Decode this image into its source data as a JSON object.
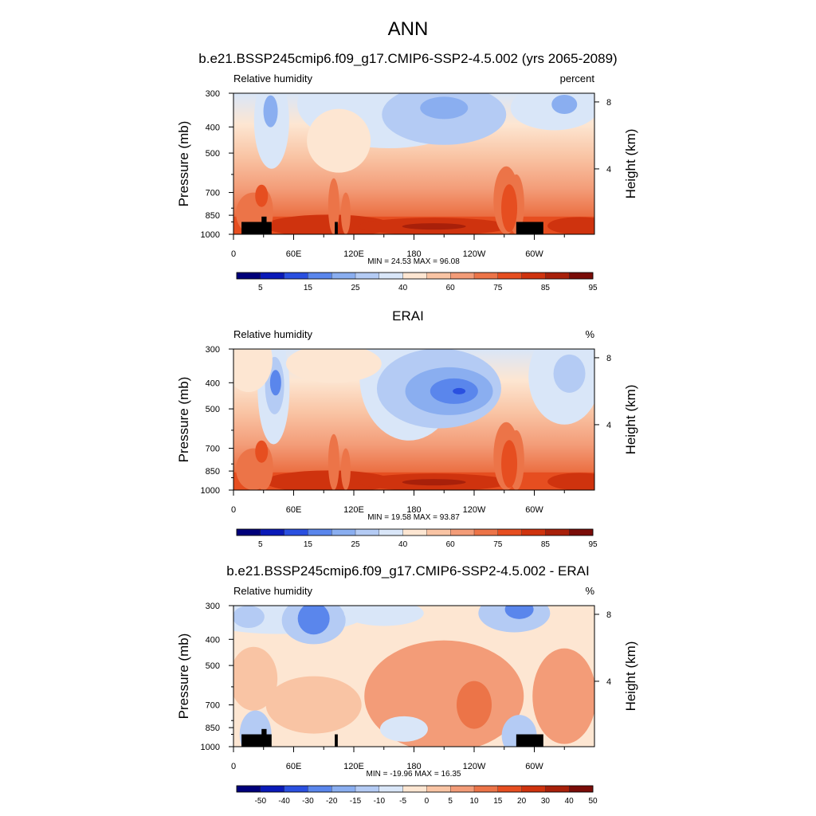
{
  "figure": {
    "title": "ANN",
    "panels": [
      {
        "title": "b.e21.BSSP245cmip6.f09_g17.CMIP6-SSP2-4.5.002 (yrs 2065-2089)",
        "left_label": "Relative humidity",
        "units": "percent",
        "stats": "MIN =  24.53  MAX =  96.08",
        "colorbar_labels": [
          "5",
          "15",
          "25",
          "40",
          "60",
          "75",
          "85",
          "95"
        ]
      },
      {
        "title": "ERAI",
        "left_label": "Relative humidity",
        "units": "%",
        "stats": "MIN =  19.58  MAX =  93.87",
        "colorbar_labels": [
          "5",
          "15",
          "25",
          "40",
          "60",
          "75",
          "85",
          "95"
        ]
      },
      {
        "title": "b.e21.BSSP245cmip6.f09_g17.CMIP6-SSP2-4.5.002 - ERAI",
        "left_label": "Relative humidity",
        "units": "%",
        "stats": "MIN = -19.96  MAX =  16.35",
        "colorbar_labels": [
          "-50",
          "-40",
          "-30",
          "-20",
          "-15",
          "-10",
          "-5",
          "0",
          "5",
          "10",
          "15",
          "20",
          "30",
          "40",
          "50"
        ]
      }
    ]
  },
  "chart_data": [
    {
      "type": "heatmap",
      "title": "b.e21.BSSP245cmip6.f09_g17.CMIP6-SSP2-4.5.002 (yrs 2065-2089)",
      "xlabel": "",
      "ylabel": "Pressure (mb)",
      "y2label": "Height (km)",
      "xticks": [
        "0",
        "60E",
        "120E",
        "180",
        "120W",
        "60W"
      ],
      "yticks": [
        "300",
        "400",
        "500",
        "700",
        "850",
        "1000"
      ],
      "y2ticks": [
        "8",
        "4"
      ],
      "y_scale": "log-pressure",
      "units": "percent",
      "min": 24.53,
      "max": 96.08,
      "colorbar": [
        5,
        15,
        25,
        40,
        60,
        75,
        85,
        95
      ],
      "topography": true
    },
    {
      "type": "heatmap",
      "title": "ERAI",
      "xlabel": "",
      "ylabel": "Pressure (mb)",
      "y2label": "Height (km)",
      "xticks": [
        "0",
        "60E",
        "120E",
        "180",
        "120W",
        "60W"
      ],
      "yticks": [
        "300",
        "400",
        "500",
        "700",
        "850",
        "1000"
      ],
      "y2ticks": [
        "8",
        "4"
      ],
      "y_scale": "log-pressure",
      "units": "%",
      "min": 19.58,
      "max": 93.87,
      "colorbar": [
        5,
        15,
        25,
        40,
        60,
        75,
        85,
        95
      ],
      "topography": false
    },
    {
      "type": "heatmap",
      "title": "b.e21.BSSP245cmip6.f09_g17.CMIP6-SSP2-4.5.002 - ERAI",
      "xlabel": "",
      "ylabel": "Pressure (mb)",
      "y2label": "Height (km)",
      "xticks": [
        "0",
        "60E",
        "120E",
        "180",
        "120W",
        "60W"
      ],
      "yticks": [
        "300",
        "400",
        "500",
        "700",
        "850",
        "1000"
      ],
      "y2ticks": [
        "8",
        "4"
      ],
      "y_scale": "log-pressure",
      "units": "%",
      "min": -19.96,
      "max": 16.35,
      "colorbar": [
        -50,
        -40,
        -30,
        -20,
        -15,
        -10,
        -5,
        0,
        5,
        10,
        15,
        20,
        30,
        40,
        50
      ],
      "topography": true
    }
  ],
  "colors": {
    "abs_scale": [
      "#00007a",
      "#0a1ab8",
      "#2a50e0",
      "#5a86ec",
      "#8aaef0",
      "#b4cbf4",
      "#d9e6f8",
      "#fde6d2",
      "#f9c4a4",
      "#f39c78",
      "#ec7448",
      "#e64e20",
      "#cf330e",
      "#a8200a",
      "#7a0c08"
    ],
    "diff_scale": [
      "#00007a",
      "#0a1ab8",
      "#2a50e0",
      "#5a86ec",
      "#8aaef0",
      "#b4cbf4",
      "#d9e6f8",
      "#fde6d2",
      "#f9c4a4",
      "#f39c78",
      "#ec7448",
      "#e64e20",
      "#cf330e",
      "#a8200a",
      "#7a0c08"
    ],
    "topography": "#000000"
  }
}
